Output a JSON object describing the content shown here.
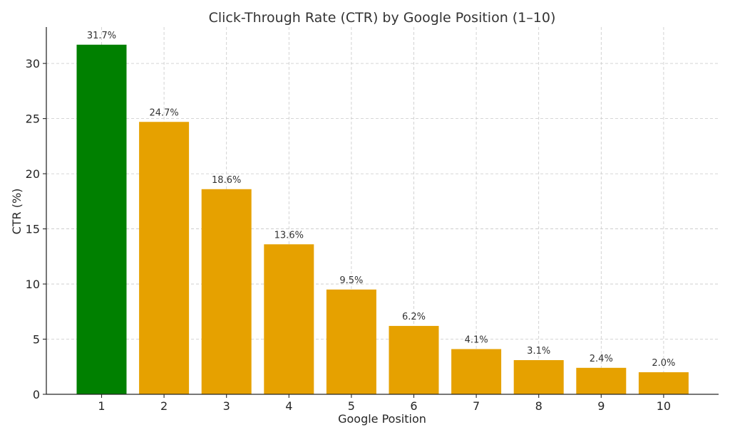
{
  "chart_data": {
    "type": "bar",
    "title": "Click-Through Rate (CTR) by Google Position (1–10)",
    "xlabel": "Google Position",
    "ylabel": "CTR (%)",
    "categories": [
      "1",
      "2",
      "3",
      "4",
      "5",
      "6",
      "7",
      "8",
      "9",
      "10"
    ],
    "values": [
      31.7,
      24.7,
      18.6,
      13.6,
      9.5,
      6.2,
      4.1,
      3.1,
      2.4,
      2.0
    ],
    "data_labels": [
      "31.7%",
      "24.7%",
      "18.6%",
      "13.6%",
      "9.5%",
      "6.2%",
      "4.1%",
      "3.1%",
      "2.4%",
      "2.0%"
    ],
    "bar_colors": [
      "#008000",
      "#e6a100",
      "#e6a100",
      "#e6a100",
      "#e6a100",
      "#e6a100",
      "#e6a100",
      "#e6a100",
      "#e6a100",
      "#e6a100"
    ],
    "yticks": [
      0,
      5,
      10,
      15,
      20,
      25,
      30
    ],
    "ylim": [
      0,
      33.3
    ],
    "grid": true,
    "legend": false
  }
}
